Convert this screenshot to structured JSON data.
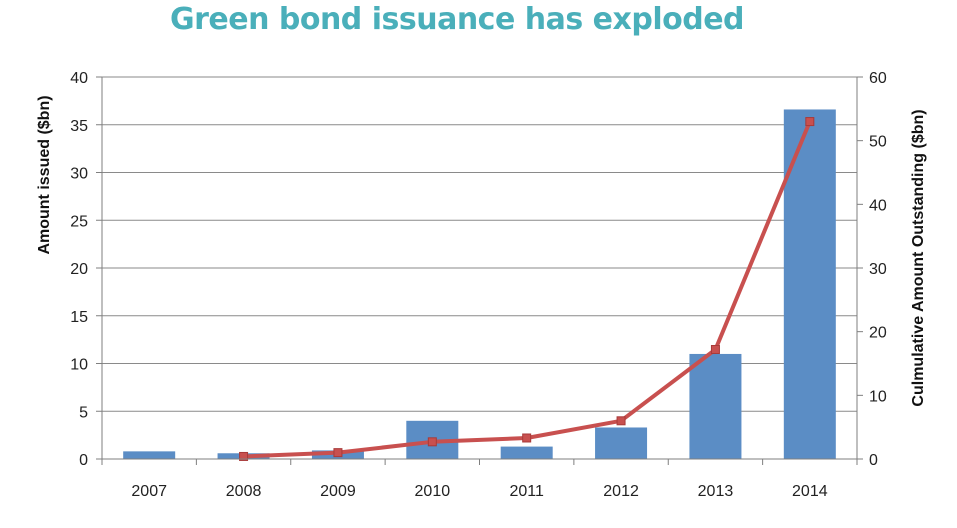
{
  "chart_data": {
    "type": "bar",
    "title": "Green bond issuance has exploded",
    "categories": [
      "2007",
      "2008",
      "2009",
      "2010",
      "2011",
      "2012",
      "2013",
      "2014"
    ],
    "ylabel": "Amount issued ($bn)",
    "y2label": "Culmulative Amount Outstanding ($bn)",
    "ylim": [
      0,
      40
    ],
    "y2lim": [
      0,
      60
    ],
    "yticks": [
      "0",
      "5",
      "10",
      "15",
      "20",
      "25",
      "30",
      "35",
      "40"
    ],
    "y2ticks": [
      "0",
      "10",
      "20",
      "30",
      "40",
      "50",
      "60"
    ],
    "grid": true,
    "series": [
      {
        "type": "bar",
        "axis": "left",
        "color": "#5b8dc5",
        "values": [
          0.8,
          0.6,
          0.9,
          4.0,
          1.3,
          3.3,
          11.0,
          36.6
        ]
      },
      {
        "type": "line",
        "axis": "right",
        "color": "#c8504f",
        "values": [
          null,
          0.4,
          1.0,
          2.7,
          3.3,
          6.0,
          17.2,
          53.0
        ]
      }
    ]
  }
}
